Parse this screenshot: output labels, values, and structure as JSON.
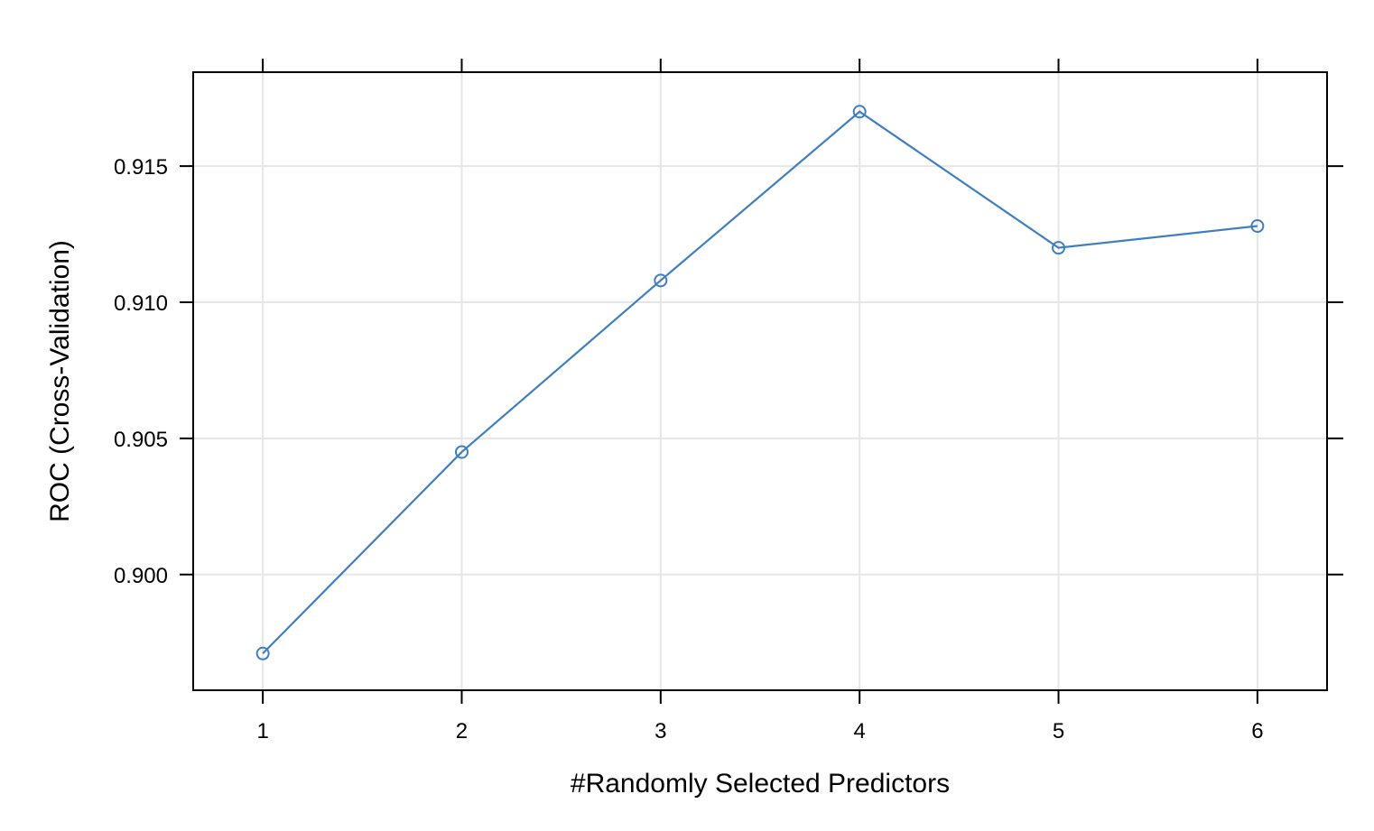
{
  "chart_data": {
    "type": "line",
    "xlabel": "#Randomly Selected Predictors",
    "ylabel": "ROC (Cross-Validation)",
    "x": [
      1,
      2,
      3,
      4,
      5,
      6
    ],
    "series": [
      {
        "values": [
          0.8971,
          0.9045,
          0.9108,
          0.917,
          0.912,
          0.9128
        ]
      }
    ],
    "xticks": [
      "1",
      "2",
      "3",
      "4",
      "5",
      "6"
    ],
    "yticks": [
      "0.900",
      "0.905",
      "0.910",
      "0.915"
    ],
    "xlim": [
      0.65,
      6.35
    ],
    "ylim": [
      0.89575,
      0.91845
    ],
    "grid": true,
    "line_color": "#3f7fbf",
    "grid_color": "#e6e6e6"
  }
}
